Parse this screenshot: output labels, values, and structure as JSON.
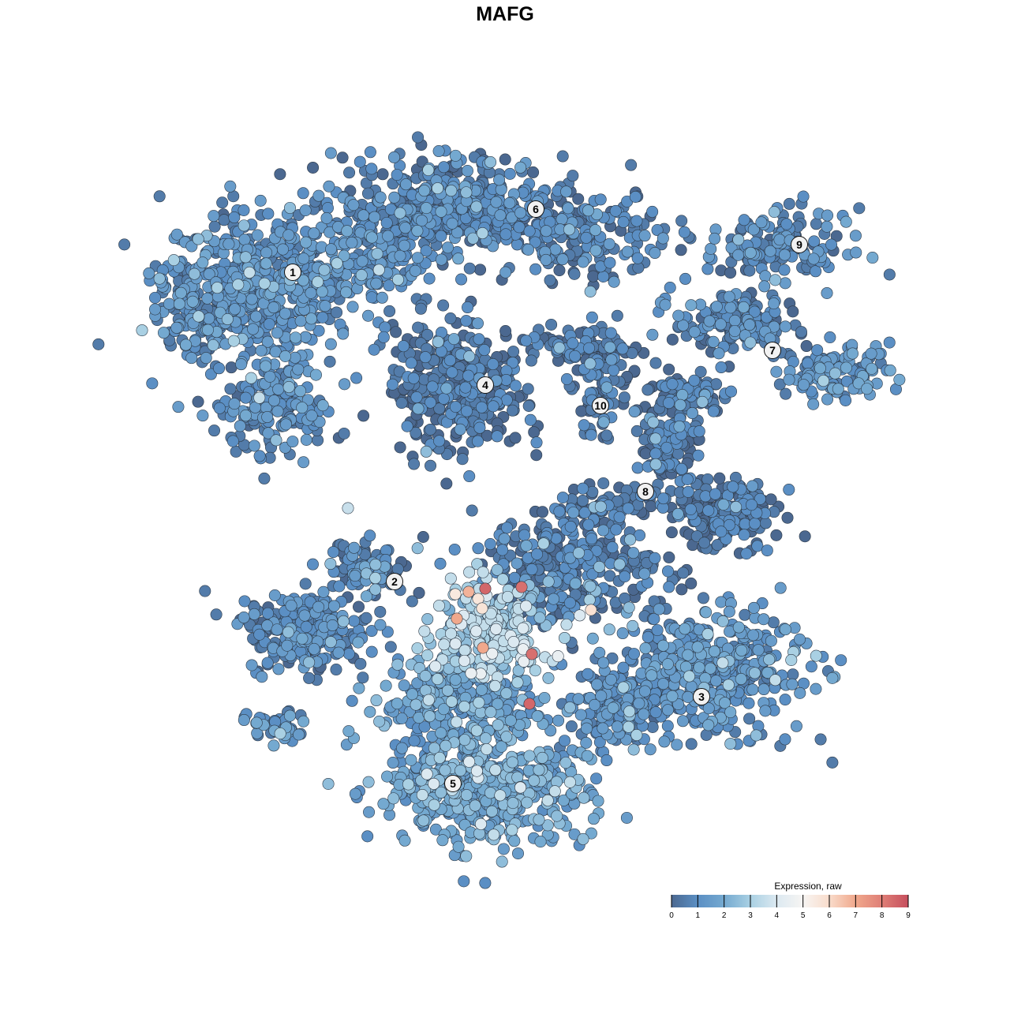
{
  "chart_data": {
    "type": "scatter",
    "title": "MAFG",
    "xlabel": "",
    "ylabel": "",
    "xlim": [
      -12,
      12
    ],
    "ylim": [
      -12,
      12
    ],
    "grid": false,
    "axes_visible": false,
    "legend": {
      "title": "Expression, raw",
      "placement": "bottom-right",
      "range": [
        0,
        9
      ],
      "ticks": [
        "0",
        "1",
        "2",
        "3",
        "4",
        "5",
        "6",
        "7",
        "8",
        "9"
      ],
      "colors": [
        "#4b6890",
        "#5b8fc4",
        "#74a9d0",
        "#a9d0e3",
        "#dce9f1",
        "#f7f5f3",
        "#f9dccb",
        "#f0a88c",
        "#df7e76",
        "#c64f5e"
      ]
    },
    "cluster_labels": [
      {
        "label": "1",
        "x": -6.725,
        "y": 7.375
      },
      {
        "label": "2",
        "x": -3.5,
        "y": -2.425
      },
      {
        "label": "3",
        "x": 6.225,
        "y": -6.075
      },
      {
        "label": "4",
        "x": -0.625,
        "y": 3.8
      },
      {
        "label": "5",
        "x": -1.65,
        "y": -8.825
      },
      {
        "label": "6",
        "x": 0.975,
        "y": 9.375
      },
      {
        "label": "7",
        "x": 8.475,
        "y": 4.9
      },
      {
        "label": "8",
        "x": 4.45,
        "y": 0.425
      },
      {
        "label": "9",
        "x": 9.325,
        "y": 8.25
      },
      {
        "label": "10",
        "x": 3.025,
        "y": 3.15
      }
    ],
    "point_regions": [
      {
        "cluster": "1",
        "x": -7.75,
        "y": 7.0,
        "sx": 2.75,
        "sy": 2.25,
        "n": 500,
        "mean_expression": 1.0
      },
      {
        "cluster": "1",
        "x": -9.75,
        "y": 6.25,
        "sx": 1.25,
        "sy": 1.5,
        "n": 120,
        "mean_expression": 1.0
      },
      {
        "cluster": "1",
        "x": -7.25,
        "y": 3.0,
        "sx": 1.5,
        "sy": 1.25,
        "n": 160,
        "mean_expression": 1.0
      },
      {
        "cluster": "1",
        "x": -4.0,
        "y": 7.75,
        "sx": 1.75,
        "sy": 1.5,
        "n": 150,
        "mean_expression": 1.0
      },
      {
        "cluster": "6",
        "x": -1.75,
        "y": 9.5,
        "sx": 3.25,
        "sy": 1.4,
        "n": 400,
        "mean_expression": 0.7
      },
      {
        "cluster": "6",
        "x": 2.5,
        "y": 8.5,
        "sx": 2.25,
        "sy": 1.25,
        "n": 180,
        "mean_expression": 0.6
      },
      {
        "cluster": "4",
        "x": -1.5,
        "y": 3.75,
        "sx": 1.9,
        "sy": 1.9,
        "n": 350,
        "mean_expression": 0.3
      },
      {
        "cluster": "10",
        "x": 3.0,
        "y": 4.5,
        "sx": 1.25,
        "sy": 1.0,
        "n": 80,
        "mean_expression": 0.4
      },
      {
        "cluster": "10",
        "x": 3.0,
        "y": 3.0,
        "sx": 0.6,
        "sy": 0.9,
        "n": 40,
        "mean_expression": 0.4
      },
      {
        "cluster": "10",
        "x": 2.0,
        "y": 5.0,
        "sx": 1.5,
        "sy": 0.5,
        "n": 50,
        "mean_expression": 0.4
      },
      {
        "cluster": "9",
        "x": 8.5,
        "y": 8.25,
        "sx": 2.1,
        "sy": 1.0,
        "n": 150,
        "mean_expression": 0.8
      },
      {
        "cluster": "7",
        "x": 7.25,
        "y": 5.75,
        "sx": 1.75,
        "sy": 0.9,
        "n": 150,
        "mean_expression": 0.8
      },
      {
        "cluster": "7",
        "x": 10.5,
        "y": 4.25,
        "sx": 1.5,
        "sy": 0.75,
        "n": 120,
        "mean_expression": 1.1
      },
      {
        "cluster": "8",
        "x": 5.25,
        "y": 2.25,
        "sx": 0.9,
        "sy": 1.5,
        "n": 120,
        "mean_expression": 0.4
      },
      {
        "cluster": "8",
        "x": 7.0,
        "y": -0.25,
        "sx": 1.5,
        "sy": 1.0,
        "n": 180,
        "mean_expression": 0.3
      },
      {
        "cluster": "8",
        "x": 3.0,
        "y": 0.0,
        "sx": 2.0,
        "sy": 0.6,
        "n": 80,
        "mean_expression": 0.4
      },
      {
        "cluster": "8",
        "x": 6.0,
        "y": 3.5,
        "sx": 1.0,
        "sy": 0.6,
        "n": 60,
        "mean_expression": 0.4
      },
      {
        "cluster": "2",
        "x": -6.25,
        "y": -4.0,
        "sx": 1.75,
        "sy": 1.1,
        "n": 250,
        "mean_expression": 0.7
      },
      {
        "cluster": "2",
        "x": -4.5,
        "y": -2.0,
        "sx": 1.25,
        "sy": 0.75,
        "n": 100,
        "mean_expression": 0.7
      },
      {
        "cluster": "2",
        "x": -7.25,
        "y": -7.0,
        "sx": 1.0,
        "sy": 0.5,
        "n": 40,
        "mean_expression": 1.2
      },
      {
        "cluster": "2",
        "x": 2.0,
        "y": -2.0,
        "sx": 2.75,
        "sy": 1.5,
        "n": 300,
        "mean_expression": 0.5
      },
      {
        "cluster": "2",
        "x": -0.5,
        "y": -4.0,
        "sx": 1.75,
        "sy": 1.5,
        "n": 250,
        "mean_expression": 3.0
      },
      {
        "cluster": "3",
        "x": 6.5,
        "y": -5.25,
        "sx": 2.75,
        "sy": 1.75,
        "n": 400,
        "mean_expression": 1.1
      },
      {
        "cluster": "5",
        "x": -0.75,
        "y": -9.0,
        "sx": 3.0,
        "sy": 1.6,
        "n": 500,
        "mean_expression": 1.8
      },
      {
        "cluster": "5",
        "x": -1.5,
        "y": -6.25,
        "sx": 2.25,
        "sy": 1.25,
        "n": 250,
        "mean_expression": 1.5
      },
      {
        "cluster": "5",
        "x": 3.5,
        "y": -6.5,
        "sx": 1.5,
        "sy": 1.25,
        "n": 150,
        "mean_expression": 0.9
      }
    ],
    "high_expression_points": [
      {
        "x": -0.625,
        "y": -2.65,
        "expression": 8.5
      },
      {
        "x": 0.525,
        "y": -2.6,
        "expression": 8.3
      },
      {
        "x": 0.85,
        "y": -4.725,
        "expression": 8.3
      },
      {
        "x": 0.775,
        "y": -6.3,
        "expression": 8.5
      },
      {
        "x": -1.15,
        "y": -2.75,
        "expression": 6.8
      },
      {
        "x": -1.525,
        "y": -3.6,
        "expression": 7.0
      },
      {
        "x": -0.7,
        "y": -4.525,
        "expression": 7.0
      },
      {
        "x": -0.85,
        "y": -2.975,
        "expression": 5.6
      },
      {
        "x": -0.725,
        "y": -3.275,
        "expression": 5.7
      },
      {
        "x": -1.575,
        "y": -2.825,
        "expression": 5.5
      },
      {
        "x": 2.725,
        "y": -3.325,
        "expression": 5.8
      },
      {
        "x": -4.975,
        "y": -0.1,
        "expression": 3.6
      }
    ]
  }
}
